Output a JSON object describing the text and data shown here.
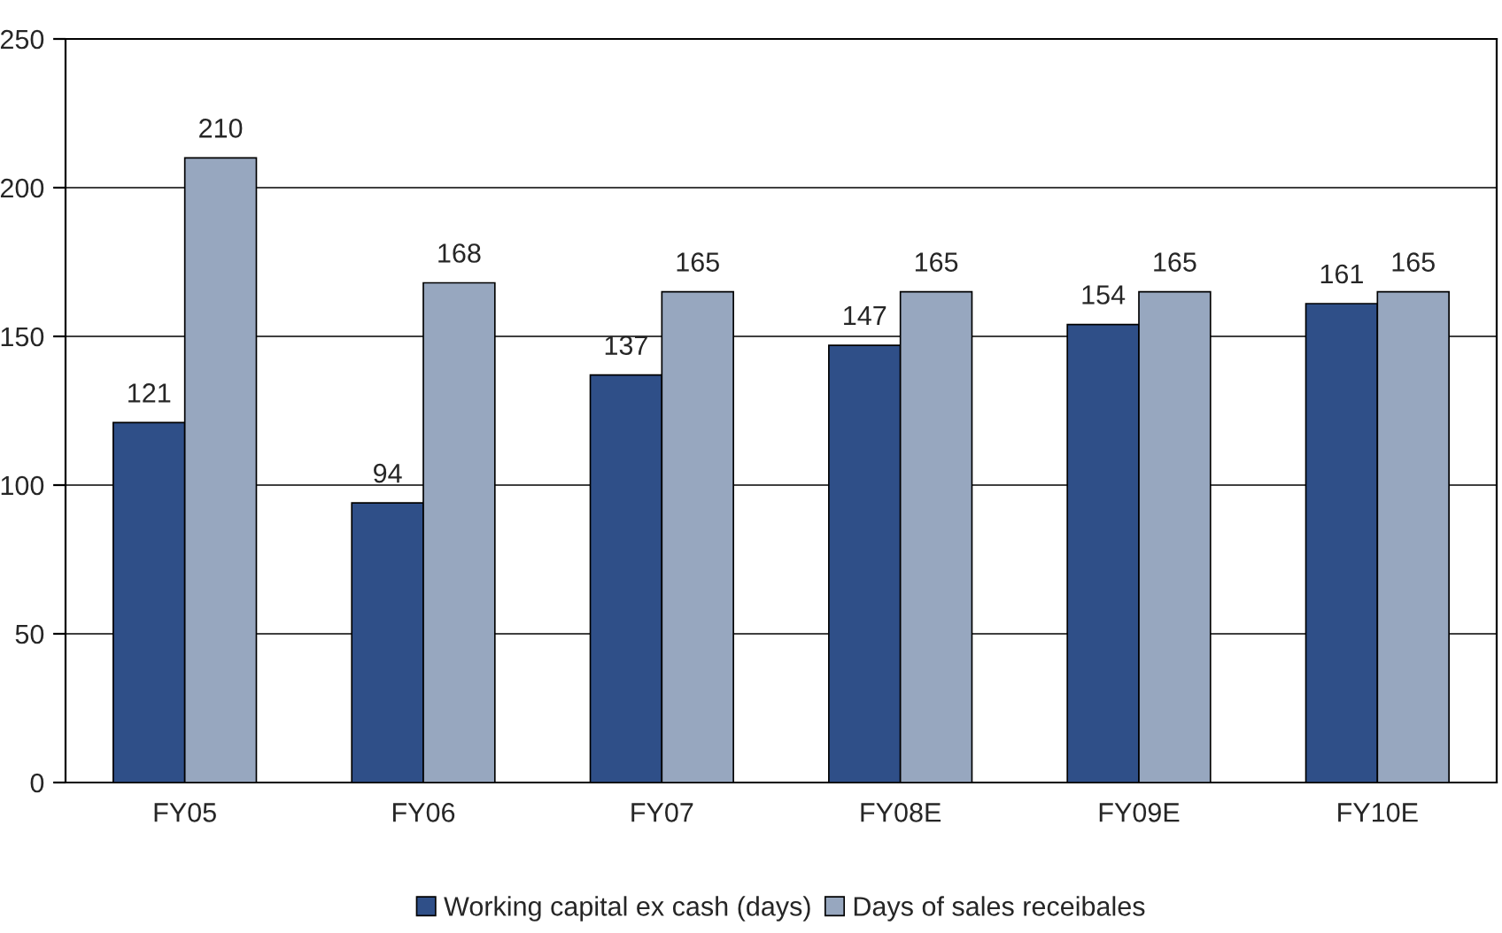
{
  "chart_data": {
    "type": "bar",
    "categories": [
      "FY05",
      "FY06",
      "FY07",
      "FY08E",
      "FY09E",
      "FY10E"
    ],
    "series": [
      {
        "name": "Working capital ex cash (days)",
        "color": "#2f4f88",
        "values": [
          121,
          94,
          137,
          147,
          154,
          161
        ]
      },
      {
        "name": "Days of sales receibales",
        "color": "#97a7bf",
        "values": [
          210,
          168,
          165,
          165,
          165,
          165
        ]
      }
    ],
    "ylim": [
      0,
      250
    ],
    "yticks": [
      0,
      50,
      100,
      150,
      200,
      250
    ],
    "grid": "y",
    "legend": "bottom",
    "data_labels": true
  }
}
